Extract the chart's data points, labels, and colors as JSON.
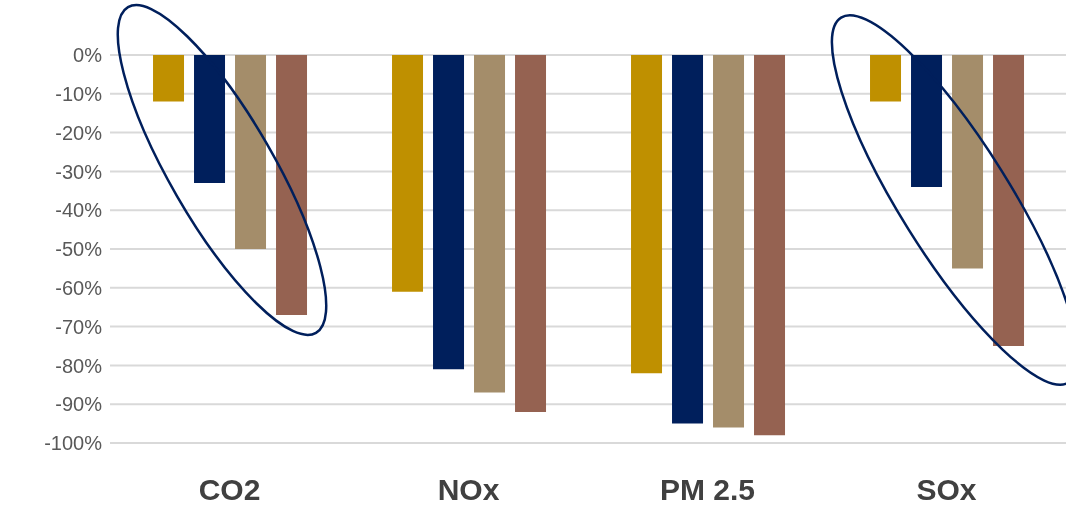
{
  "chart_data": {
    "type": "bar",
    "categories": [
      "CO2",
      "NOx",
      "PM 2.5",
      "SOx"
    ],
    "series": [
      {
        "color": "#bf9000",
        "values": [
          -12,
          -61,
          -82,
          -12
        ]
      },
      {
        "color": "#001f5c",
        "values": [
          -33,
          -81,
          -95,
          -34
        ]
      },
      {
        "color": "#a48d6a",
        "values": [
          -50,
          -87,
          -96,
          -55
        ]
      },
      {
        "color": "#956251",
        "values": [
          -67,
          -92,
          -98,
          -75
        ]
      }
    ],
    "ylim": [
      -100,
      0
    ],
    "yticks": [
      {
        "value": 0,
        "label": "0%"
      },
      {
        "value": -10,
        "label": "-10%"
      },
      {
        "value": -20,
        "label": "-20%"
      },
      {
        "value": -30,
        "label": "-30%"
      },
      {
        "value": -40,
        "label": "-40%"
      },
      {
        "value": -50,
        "label": "-50%"
      },
      {
        "value": -60,
        "label": "-60%"
      },
      {
        "value": -70,
        "label": "-70%"
      },
      {
        "value": -80,
        "label": "-80%"
      },
      {
        "value": -90,
        "label": "-90%"
      },
      {
        "value": -100,
        "label": "-100%"
      }
    ],
    "grid": "y",
    "legend": false
  }
}
